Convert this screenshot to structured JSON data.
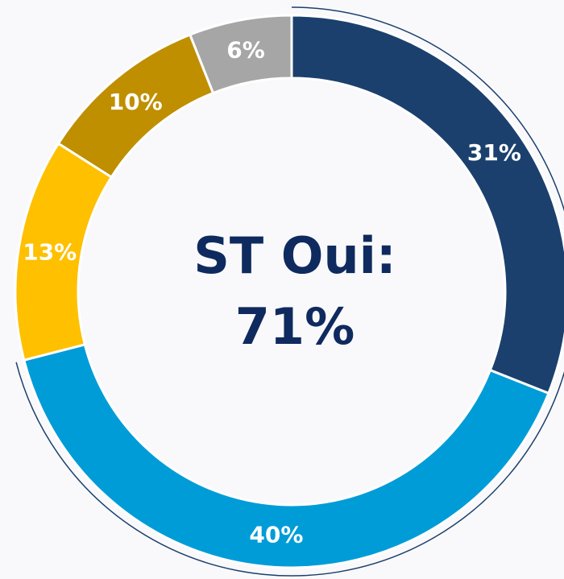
{
  "chart_data": {
    "type": "donut",
    "values": [
      31,
      40,
      13,
      10,
      6
    ],
    "value_labels": [
      "31%",
      "40%",
      "13%",
      "10%",
      "6%"
    ],
    "colors": [
      "#1b406d",
      "#009cd8",
      "#ffc000",
      "#bf8f00",
      "#a6a6a6"
    ],
    "center_label": [
      "ST Oui:",
      "71%"
    ]
  }
}
